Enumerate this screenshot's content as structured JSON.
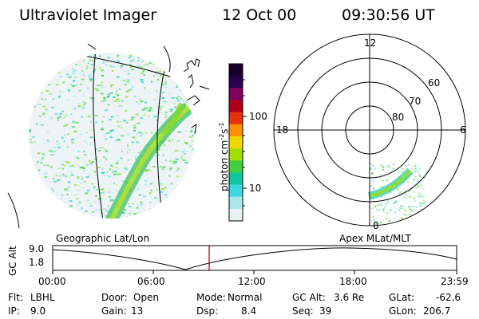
{
  "header": {
    "title": "Ultraviolet Imager",
    "date": "12 Oct 00",
    "time": "09:30:56 UT"
  },
  "colorbar": {
    "label_text": "photon cm",
    "label_exp1": "-2",
    "label_s": "s",
    "label_exp2": "-1",
    "ticks": [
      "100",
      "10"
    ],
    "colors": [
      "#1a0030",
      "#2a0050",
      "#800060",
      "#b00018",
      "#e83010",
      "#ff9000",
      "#f0d800",
      "#a0e000",
      "#40d040",
      "#10c8a0",
      "#40d8e0",
      "#a8e8ec",
      "#e8f2f2"
    ]
  },
  "polar_plot": {
    "mlt_labels": [
      "12",
      "18",
      "6",
      "0"
    ],
    "mlat_labels": [
      "60",
      "70",
      "80"
    ]
  },
  "panels": {
    "left_label": "Geographic Lat/Lon",
    "right_label": "Apex MLat/MLT"
  },
  "altitude_plot": {
    "ylabel": "GC Alt",
    "yticks": [
      "9.0",
      "1.8"
    ],
    "xticks": [
      "00:00",
      "06:00",
      "12:00",
      "18:00",
      "23:59"
    ],
    "marker_color": "#cc0000"
  },
  "footer": {
    "filter_label": "Flt:",
    "filter_value": "LBHL",
    "door_label": "Door:",
    "door_value": "Open",
    "mode_label": "Mode:",
    "mode_value": "Normal",
    "gcalt_label": "GC Alt:",
    "gcalt_value": "3.6 Re",
    "glat_label": "GLat:",
    "glat_value": "-62.6",
    "ip_label": "IP:",
    "ip_value": "9.0",
    "gain_label": "Gain:",
    "gain_value": "13",
    "dsp_label": "Dsp:",
    "dsp_value": "8.4",
    "seq_label": "Seq:",
    "seq_value": "39",
    "glon_label": "GLon:",
    "glon_value": "206.7"
  }
}
